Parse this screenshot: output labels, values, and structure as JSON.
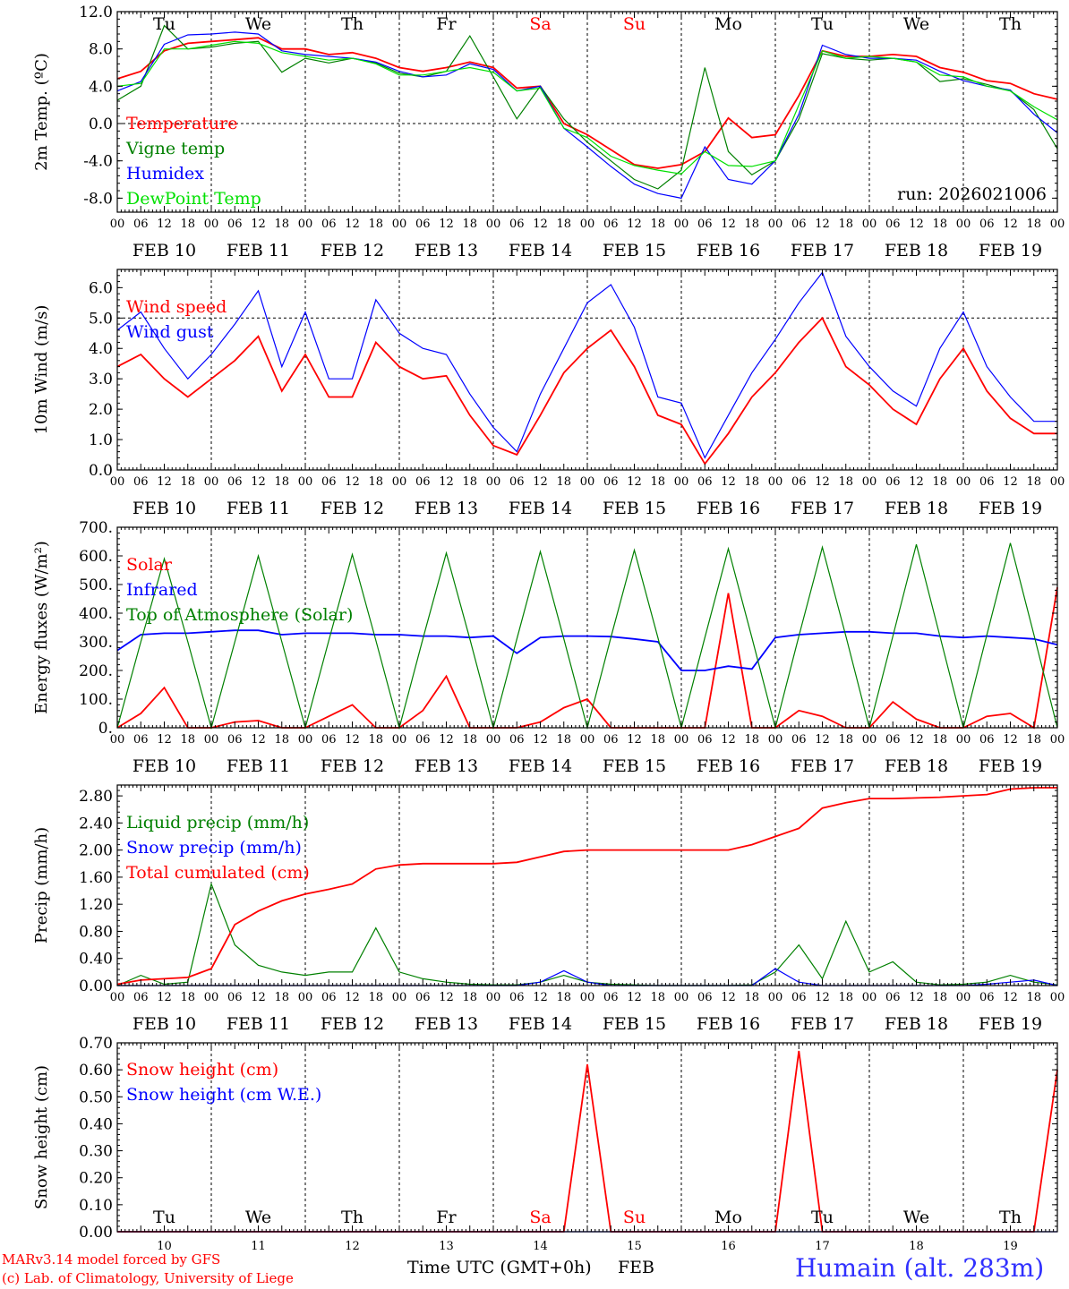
{
  "footer": {
    "credit1": "MARv3.14 model forced by GFS",
    "credit2": "(c) Lab. of Climatology, University of Liege",
    "xlabel": "Time UTC (GMT+0h)",
    "month": "FEB",
    "station": "Humain (alt. 283m)"
  },
  "colors": {
    "red": "#ff0000",
    "green": "#008000",
    "blue": "#0000ff",
    "lightgreen": "#00e000",
    "axis": "#000000"
  },
  "chart_data": [
    {
      "type": "line",
      "title": "2m Temp.",
      "ylabel": "2m Temp. (ºC)",
      "ylim": [
        -9.5,
        12
      ],
      "yticks": [
        "12.0",
        "8.0",
        "4.0",
        "0.0",
        "-4.0",
        "-8.0"
      ],
      "ytick_values": [
        12,
        8,
        4,
        0,
        -4,
        -8
      ],
      "zero_line": 0,
      "day_labels": [
        "Tu",
        "We",
        "Th",
        "Fr",
        "Sa",
        "Su",
        "Mo",
        "Tu",
        "We",
        "Th"
      ],
      "run_label": "run: 2026021006",
      "x_hours": [
        0,
        6,
        12,
        18,
        24,
        30,
        36,
        42,
        48,
        54,
        60,
        66,
        72,
        78,
        84,
        90,
        96,
        102,
        108,
        114,
        120,
        126,
        132,
        138,
        144,
        150,
        156,
        162,
        168,
        174,
        180,
        186,
        192,
        198,
        204,
        210,
        216,
        222,
        228,
        234,
        240
      ],
      "series": [
        {
          "name": "Temperature",
          "color": "#ff0000",
          "values": [
            4.8,
            5.6,
            7.8,
            8.6,
            8.8,
            9.0,
            9.2,
            8.0,
            8.0,
            7.4,
            7.6,
            7.0,
            6.0,
            5.6,
            6.0,
            6.6,
            6.0,
            3.8,
            4.0,
            0.0,
            -1.2,
            -2.8,
            -4.4,
            -4.8,
            -4.4,
            -3.0,
            0.6,
            -1.5,
            -1.2,
            3.0,
            7.8,
            7.2,
            7.2,
            7.4,
            7.2,
            6.0,
            5.5,
            4.6,
            4.3,
            3.2,
            2.6
          ]
        },
        {
          "name": "Vigne temp",
          "color": "#008000",
          "values": [
            2.5,
            4.0,
            10.5,
            8.0,
            8.2,
            8.6,
            8.8,
            5.5,
            7.0,
            6.5,
            7.0,
            6.5,
            5.4,
            5.0,
            5.6,
            9.4,
            5.0,
            0.5,
            4.0,
            0.5,
            -2.0,
            -4.0,
            -6.0,
            -7.0,
            -5.0,
            6.0,
            -3.0,
            -5.5,
            -4.0,
            0.5,
            7.5,
            7.0,
            6.8,
            7.0,
            6.6,
            4.5,
            4.8,
            4.2,
            3.5,
            1.5,
            -2.7
          ]
        },
        {
          "name": "Humidex",
          "color": "#0000ff",
          "values": [
            3.5,
            4.5,
            8.5,
            9.5,
            9.6,
            9.8,
            9.6,
            7.8,
            7.4,
            7.2,
            7.0,
            6.6,
            5.6,
            5.0,
            5.2,
            6.4,
            5.8,
            3.5,
            4.0,
            -0.5,
            -2.5,
            -4.6,
            -6.5,
            -7.5,
            -8.0,
            -2.5,
            -6.0,
            -6.5,
            -4.0,
            1.0,
            8.4,
            7.4,
            7.0,
            7.0,
            6.8,
            5.6,
            4.6,
            4.0,
            3.6,
            1.0,
            -1.0
          ]
        },
        {
          "name": "DewPoint Temp",
          "color": "#00e000",
          "values": [
            4.0,
            4.3,
            8.0,
            8.0,
            8.4,
            8.8,
            8.6,
            7.6,
            7.2,
            6.8,
            7.0,
            6.4,
            5.2,
            5.2,
            5.6,
            6.0,
            5.5,
            3.5,
            3.8,
            -0.5,
            -1.5,
            -3.5,
            -4.5,
            -5.0,
            -5.4,
            -3.0,
            -4.5,
            -4.6,
            -4.0,
            2.0,
            7.8,
            7.0,
            7.2,
            7.0,
            6.6,
            5.2,
            5.0,
            4.0,
            3.5,
            1.8,
            0.4
          ]
        }
      ]
    },
    {
      "type": "line",
      "title": "10m Wind",
      "ylabel": "10m Wind (m/s)",
      "ylim": [
        0,
        6.6
      ],
      "yticks": [
        "6.0",
        "5.0",
        "4.0",
        "3.0",
        "2.0",
        "1.0",
        "0.0"
      ],
      "ytick_values": [
        6,
        5,
        4,
        3,
        2,
        1,
        0
      ],
      "dashed_line": 5,
      "x_hours": [
        0,
        6,
        12,
        18,
        24,
        30,
        36,
        42,
        48,
        54,
        60,
        66,
        72,
        78,
        84,
        90,
        96,
        102,
        108,
        114,
        120,
        126,
        132,
        138,
        144,
        150,
        156,
        162,
        168,
        174,
        180,
        186,
        192,
        198,
        204,
        210,
        216,
        222,
        228,
        234,
        240
      ],
      "series": [
        {
          "name": "Wind speed",
          "color": "#ff0000",
          "values": [
            3.4,
            3.8,
            3.0,
            2.4,
            3.0,
            3.6,
            4.4,
            2.6,
            3.8,
            2.4,
            2.4,
            4.2,
            3.4,
            3.0,
            3.1,
            1.8,
            0.8,
            0.5,
            1.8,
            3.2,
            4.0,
            4.6,
            3.4,
            1.8,
            1.5,
            0.2,
            1.2,
            2.4,
            3.2,
            4.2,
            5.0,
            3.4,
            2.8,
            2.0,
            1.5,
            3.0,
            4.0,
            2.6,
            1.7,
            1.2,
            1.2
          ]
        },
        {
          "name": "Wind gust",
          "color": "#0000ff",
          "values": [
            4.6,
            5.2,
            4.0,
            3.0,
            3.8,
            4.8,
            5.9,
            3.4,
            5.2,
            3.0,
            3.0,
            5.6,
            4.5,
            4.0,
            3.8,
            2.5,
            1.4,
            0.6,
            2.5,
            4.0,
            5.5,
            6.1,
            4.7,
            2.4,
            2.2,
            0.4,
            1.8,
            3.2,
            4.3,
            5.5,
            6.5,
            4.4,
            3.4,
            2.6,
            2.1,
            4.0,
            5.2,
            3.4,
            2.4,
            1.6,
            1.6
          ]
        }
      ]
    },
    {
      "type": "line",
      "title": "Energy fluxes",
      "ylabel": "Energy fluxes (W/m²)",
      "ylim": [
        0,
        700
      ],
      "yticks": [
        "700.",
        "600.",
        "500.",
        "400.",
        "300.",
        "200.",
        "100.",
        "0."
      ],
      "ytick_values": [
        700,
        600,
        500,
        400,
        300,
        200,
        100,
        0
      ],
      "x_hours": [
        0,
        6,
        12,
        18,
        24,
        30,
        36,
        42,
        48,
        54,
        60,
        66,
        72,
        78,
        84,
        90,
        96,
        102,
        108,
        114,
        120,
        126,
        132,
        138,
        144,
        150,
        156,
        162,
        168,
        174,
        180,
        186,
        192,
        198,
        204,
        210,
        216,
        222,
        228,
        234,
        240
      ],
      "series": [
        {
          "name": "Solar",
          "color": "#ff0000",
          "values": [
            0,
            50,
            140,
            0,
            0,
            20,
            25,
            0,
            0,
            40,
            80,
            0,
            0,
            60,
            180,
            0,
            0,
            0,
            20,
            70,
            100,
            0,
            0,
            0,
            0,
            0,
            470,
            0,
            0,
            60,
            40,
            0,
            0,
            90,
            30,
            0,
            0,
            40,
            50,
            0,
            490
          ]
        },
        {
          "name": "Infrared",
          "color": "#0000ff",
          "values": [
            270,
            325,
            330,
            330,
            335,
            340,
            340,
            325,
            330,
            330,
            330,
            325,
            325,
            320,
            320,
            315,
            320,
            260,
            315,
            320,
            320,
            318,
            310,
            300,
            200,
            200,
            215,
            205,
            315,
            325,
            330,
            335,
            335,
            330,
            330,
            320,
            315,
            320,
            315,
            310,
            290
          ]
        },
        {
          "name": "Top of Atmosphere (Solar)",
          "color": "#008000",
          "values": [
            0,
            300,
            590,
            300,
            0,
            300,
            600,
            300,
            0,
            305,
            605,
            305,
            0,
            310,
            610,
            310,
            0,
            310,
            615,
            310,
            0,
            315,
            620,
            315,
            0,
            315,
            625,
            315,
            0,
            320,
            630,
            320,
            0,
            320,
            640,
            320,
            0,
            325,
            645,
            325,
            0
          ]
        }
      ]
    },
    {
      "type": "line",
      "title": "Precip",
      "ylabel": "Precip (mm/h)",
      "ylim": [
        0,
        2.96
      ],
      "yticks": [
        "2.80",
        "2.40",
        "2.00",
        "1.60",
        "1.20",
        "0.80",
        "0.40",
        "0.00"
      ],
      "ytick_values": [
        2.8,
        2.4,
        2.0,
        1.6,
        1.2,
        0.8,
        0.4,
        0.0
      ],
      "x_hours": [
        0,
        6,
        12,
        18,
        24,
        30,
        36,
        42,
        48,
        54,
        60,
        66,
        72,
        78,
        84,
        90,
        96,
        102,
        108,
        114,
        120,
        126,
        132,
        138,
        144,
        150,
        156,
        162,
        168,
        174,
        180,
        186,
        192,
        198,
        204,
        210,
        216,
        222,
        228,
        234,
        240
      ],
      "series": [
        {
          "name": "Liquid precip (mm/h)",
          "color": "#008000",
          "values": [
            0,
            0.15,
            0.02,
            0.05,
            1.5,
            0.6,
            0.3,
            0.2,
            0.15,
            0.2,
            0.2,
            0.85,
            0.2,
            0.1,
            0.05,
            0.02,
            0.01,
            0.01,
            0.05,
            0.15,
            0.05,
            0.02,
            0.01,
            0,
            0,
            0,
            0,
            0.01,
            0.2,
            0.6,
            0.1,
            0.95,
            0.2,
            0.35,
            0.05,
            0.01,
            0.02,
            0.05,
            0.15,
            0.05,
            0.01
          ]
        },
        {
          "name": "Snow precip (mm/h)",
          "color": "#0000ff",
          "values": [
            0,
            0,
            0,
            0,
            0,
            0,
            0,
            0,
            0,
            0,
            0,
            0,
            0,
            0,
            0,
            0,
            0,
            0,
            0.05,
            0.22,
            0.05,
            0,
            0,
            0,
            0,
            0,
            0,
            0,
            0.25,
            0.05,
            0,
            0,
            0,
            0,
            0,
            0,
            0,
            0.02,
            0.05,
            0.08,
            0
          ]
        },
        {
          "name": "Total cumulated (cm)",
          "color": "#ff0000",
          "values": [
            0.02,
            0.08,
            0.1,
            0.12,
            0.25,
            0.9,
            1.1,
            1.25,
            1.35,
            1.42,
            1.5,
            1.72,
            1.78,
            1.8,
            1.8,
            1.8,
            1.8,
            1.82,
            1.9,
            1.98,
            2.0,
            2.0,
            2.0,
            2.0,
            2.0,
            2.0,
            2.0,
            2.08,
            2.2,
            2.32,
            2.62,
            2.7,
            2.76,
            2.76,
            2.77,
            2.78,
            2.8,
            2.82,
            2.9,
            2.92,
            2.92
          ]
        }
      ]
    },
    {
      "type": "line",
      "title": "Snow height",
      "ylabel": "Snow height (cm)",
      "ylim": [
        0,
        0.7
      ],
      "yticks": [
        "0.70",
        "0.60",
        "0.50",
        "0.40",
        "0.30",
        "0.20",
        "0.10",
        "0.00"
      ],
      "ytick_values": [
        0.7,
        0.6,
        0.5,
        0.4,
        0.3,
        0.2,
        0.1,
        0.0
      ],
      "x_hours": [
        0,
        6,
        12,
        18,
        24,
        30,
        36,
        42,
        48,
        54,
        60,
        66,
        72,
        78,
        84,
        90,
        96,
        102,
        108,
        114,
        120,
        126,
        132,
        138,
        144,
        150,
        156,
        162,
        168,
        174,
        180,
        186,
        192,
        198,
        204,
        210,
        216,
        222,
        228,
        234,
        240
      ],
      "series": [
        {
          "name": "Snow height (cm)",
          "color": "#ff0000",
          "values": [
            0,
            0,
            0,
            0,
            0,
            0,
            0,
            0,
            0,
            0,
            0,
            0,
            0,
            0,
            0,
            0,
            0,
            0,
            0,
            0,
            0.62,
            0,
            0,
            0,
            0,
            0,
            0,
            0,
            0,
            0.67,
            0,
            0,
            0,
            0,
            0,
            0,
            0,
            0,
            0,
            0,
            0.6
          ]
        },
        {
          "name": "Snow height (cm W.E.)",
          "color": "#0000ff",
          "values": [
            0,
            0,
            0,
            0,
            0,
            0,
            0,
            0,
            0,
            0,
            0,
            0,
            0,
            0,
            0,
            0,
            0,
            0,
            0,
            0,
            0,
            0,
            0,
            0,
            0,
            0,
            0,
            0,
            0,
            0,
            0,
            0,
            0,
            0,
            0,
            0,
            0,
            0,
            0,
            0,
            0
          ]
        }
      ]
    }
  ],
  "x_axis": {
    "hour_labels": [
      "00",
      "06",
      "12",
      "18"
    ],
    "end_label": "00",
    "date_labels": [
      "FEB 10",
      "FEB 11",
      "FEB 12",
      "FEB 13",
      "FEB 14",
      "FEB 15",
      "FEB 16",
      "FEB 17",
      "FEB 18",
      "FEB 19"
    ],
    "bottom_day_labels": [
      "Tu",
      "We",
      "Th",
      "Fr",
      "Sa",
      "Su",
      "Mo",
      "Tu",
      "We",
      "Th"
    ],
    "bottom_day_numbers": [
      "10",
      "11",
      "12",
      "13",
      "14",
      "15",
      "16",
      "17",
      "18",
      "19"
    ]
  }
}
